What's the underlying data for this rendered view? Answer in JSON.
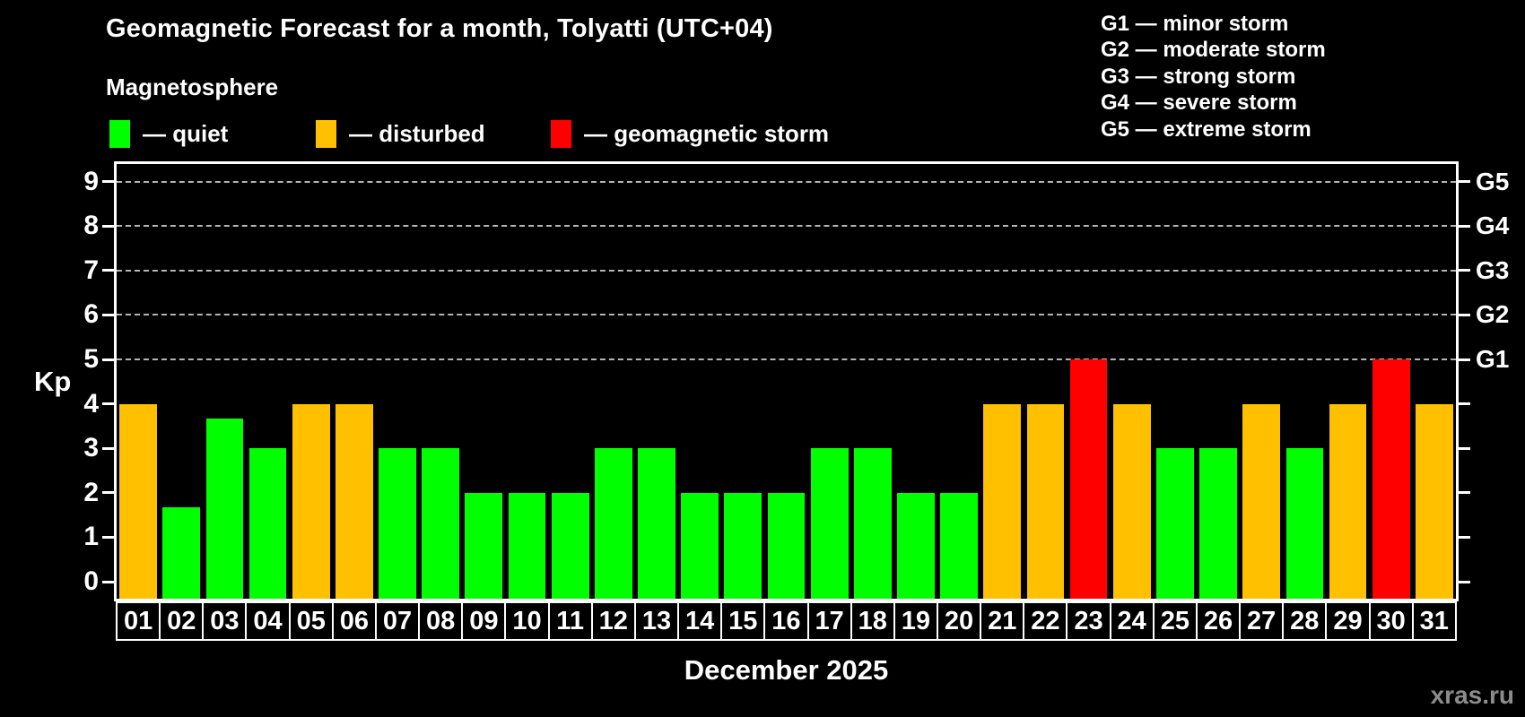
{
  "title": "Geomagnetic Forecast for a month, Tolyatti (UTC+04)",
  "subtitle": "Magnetosphere",
  "legend": {
    "quiet_label": "— quiet",
    "disturbed_label": "— disturbed",
    "storm_label": "— geomagnetic storm"
  },
  "colors": {
    "quiet": "#00ff00",
    "disturbed": "#ffc000",
    "storm": "#ff0000",
    "background": "#000000",
    "axis": "#ffffff",
    "grid": "#b4b4b4",
    "watermark": "#8c8c8c"
  },
  "storm_scale": [
    {
      "code": "G1",
      "label": "G1 — minor storm",
      "kp": 5
    },
    {
      "code": "G2",
      "label": "G2 — moderate storm",
      "kp": 6
    },
    {
      "code": "G3",
      "label": "G3 — strong storm",
      "kp": 7
    },
    {
      "code": "G4",
      "label": "G4 — severe storm",
      "kp": 8
    },
    {
      "code": "G5",
      "label": "G5 — extreme storm",
      "kp": 9
    }
  ],
  "chart_data": {
    "type": "bar",
    "title": "Geomagnetic Forecast for a month, Tolyatti (UTC+04)",
    "xlabel": "December 2025",
    "ylabel": "Kp",
    "ylim": [
      0,
      9
    ],
    "yticks": [
      0,
      1,
      2,
      3,
      4,
      5,
      6,
      7,
      8,
      9
    ],
    "gridlines_at": [
      5,
      6,
      7,
      8,
      9
    ],
    "grid": "dashed horizontal at storm levels only",
    "legend_position": "top-left",
    "categories": [
      "01",
      "02",
      "03",
      "04",
      "05",
      "06",
      "07",
      "08",
      "09",
      "10",
      "11",
      "12",
      "13",
      "14",
      "15",
      "16",
      "17",
      "18",
      "19",
      "20",
      "21",
      "22",
      "23",
      "24",
      "25",
      "26",
      "27",
      "28",
      "29",
      "30",
      "31"
    ],
    "values": [
      4,
      1.67,
      3.67,
      3,
      4,
      4,
      3,
      3,
      2,
      2,
      2,
      3,
      3,
      2,
      2,
      2,
      3,
      3,
      2,
      2,
      4,
      4,
      5,
      4,
      3,
      3,
      4,
      3,
      4,
      5,
      4
    ],
    "statuses": [
      "disturbed",
      "quiet",
      "quiet",
      "quiet",
      "disturbed",
      "disturbed",
      "quiet",
      "quiet",
      "quiet",
      "quiet",
      "quiet",
      "quiet",
      "quiet",
      "quiet",
      "quiet",
      "quiet",
      "quiet",
      "quiet",
      "quiet",
      "quiet",
      "disturbed",
      "disturbed",
      "storm",
      "disturbed",
      "quiet",
      "quiet",
      "disturbed",
      "quiet",
      "disturbed",
      "storm",
      "disturbed"
    ]
  },
  "footer": {
    "month_label": "December 2025",
    "watermark": "xras.ru"
  }
}
